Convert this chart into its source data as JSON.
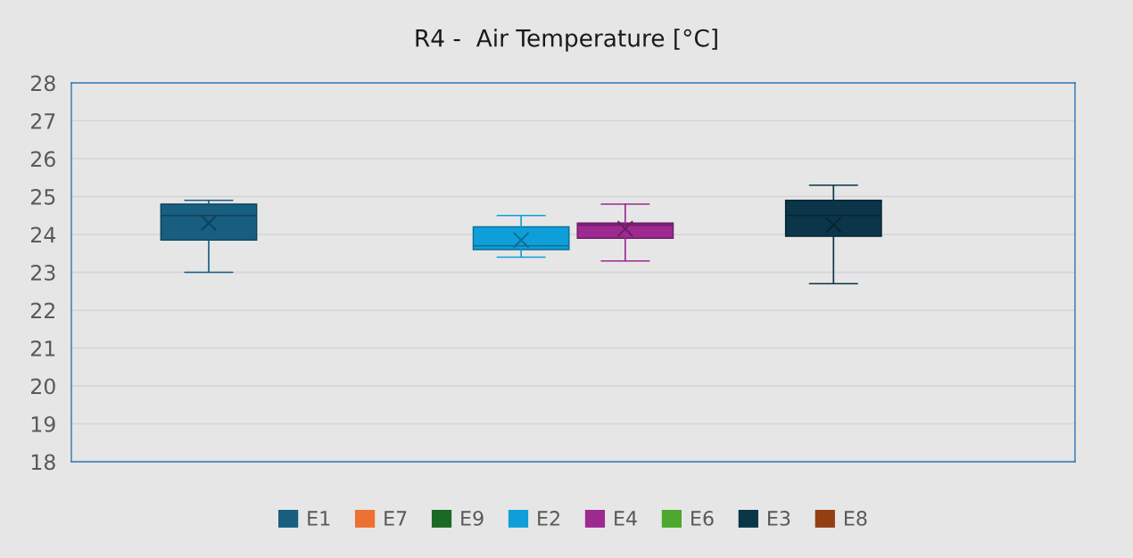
{
  "chart_data": {
    "type": "box",
    "title": "R4 -  Air Temperature [°C]",
    "categories": [
      null
    ],
    "series": [
      {
        "name": "E1",
        "color": "#175e80",
        "boxes": [
          {
            "low": 23.0,
            "q1": 23.85,
            "median": 24.5,
            "q3": 24.8,
            "high": 24.9,
            "mean": 24.3
          }
        ]
      },
      {
        "name": "E7",
        "color": "#ed7133",
        "boxes": [
          null
        ]
      },
      {
        "name": "E9",
        "color": "#1b6a23",
        "boxes": [
          null
        ]
      },
      {
        "name": "E2",
        "color": "#0f9fd8",
        "boxes": [
          {
            "low": 23.4,
            "q1": 23.6,
            "median": 23.7,
            "q3": 24.2,
            "high": 24.5,
            "mean": 23.85
          }
        ]
      },
      {
        "name": "E4",
        "color": "#9c2a91",
        "boxes": [
          {
            "low": 23.3,
            "q1": 23.9,
            "median": 24.25,
            "q3": 24.3,
            "high": 24.8,
            "mean": 24.15
          }
        ]
      },
      {
        "name": "E6",
        "color": "#4ea72e",
        "boxes": [
          null
        ]
      },
      {
        "name": "E3",
        "color": "#0b3549",
        "boxes": [
          {
            "low": 22.7,
            "q1": 23.95,
            "median": 24.5,
            "q3": 24.9,
            "high": 25.3,
            "mean": 24.25
          }
        ]
      },
      {
        "name": "E8",
        "color": "#943f12",
        "boxes": [
          null
        ]
      }
    ],
    "ylim": [
      18,
      28
    ],
    "yticks": [
      18,
      19,
      20,
      21,
      22,
      23,
      24,
      25,
      26,
      27,
      28
    ],
    "grid": "y",
    "legend": "bottom"
  }
}
